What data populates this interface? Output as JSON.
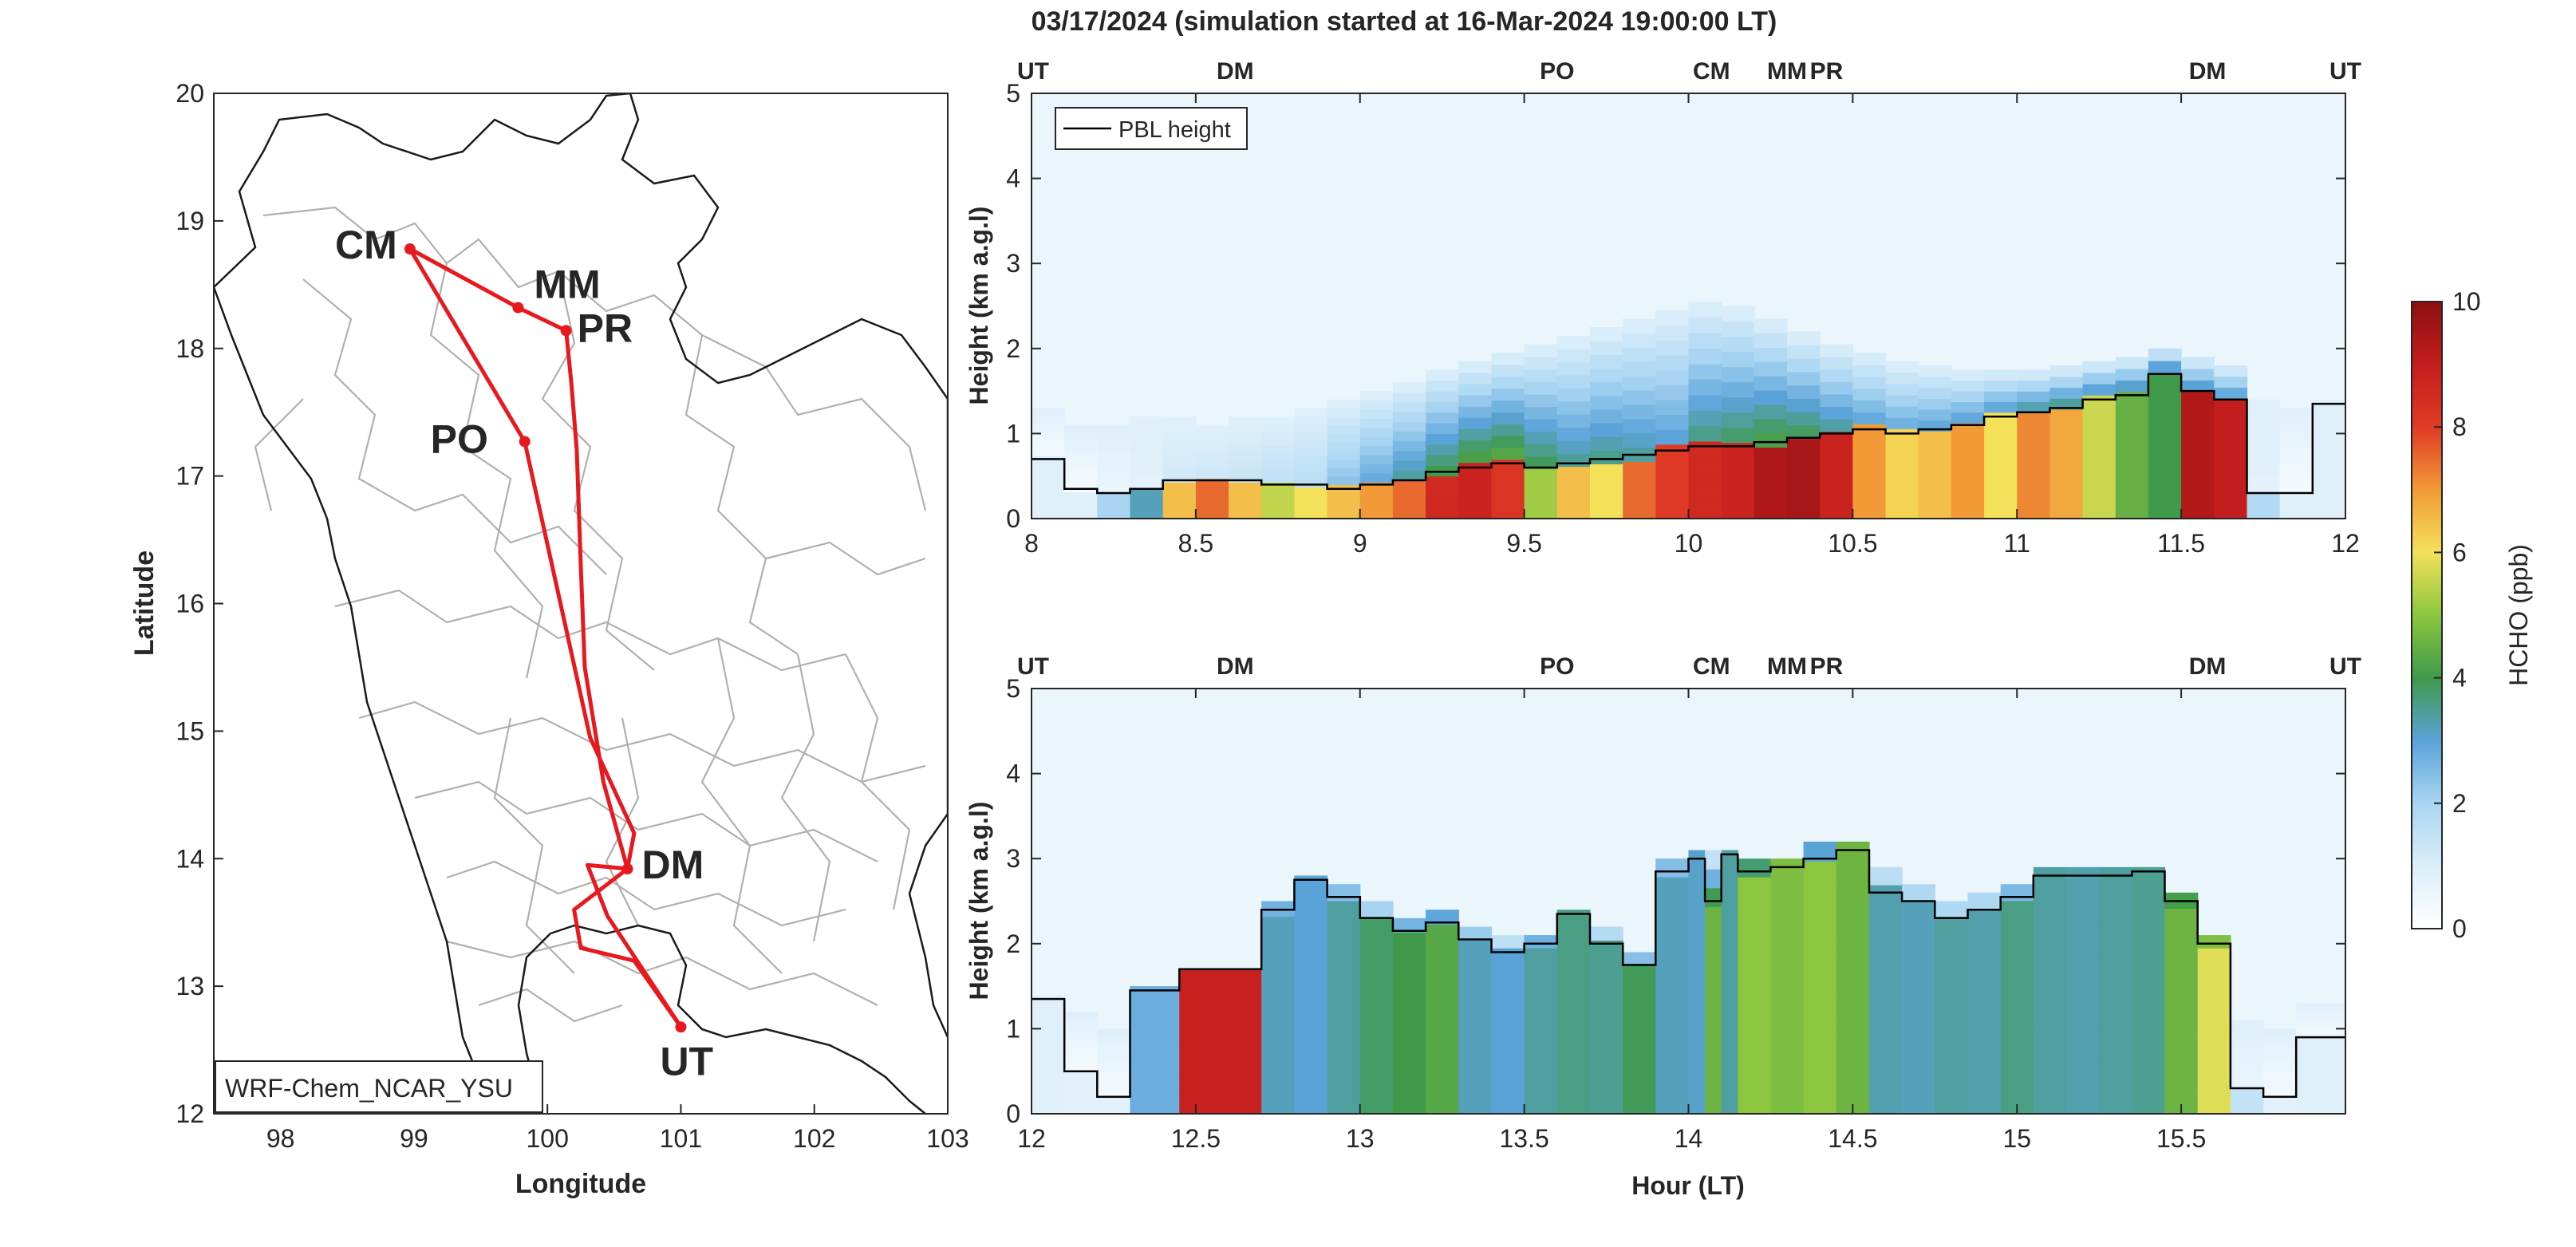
{
  "figure_title": "03/17/2024 (simulation started at 16-Mar-2024 19:00:00 LT)",
  "colors": {
    "route": "#e8191e",
    "UT": "#111111",
    "DM": "#4db7e8",
    "PO": "#77ac30",
    "CM": "#d95319",
    "MM": "#edb120",
    "PR": "#7e2f8e",
    "pbl": "#000000",
    "axis": "#262626",
    "grid": "#c8c8c8",
    "border": "#b0b0b0"
  },
  "chart_data": [
    {
      "type": "map",
      "xlabel": "Longitude",
      "ylabel": "Latitude",
      "xlim": [
        97.5,
        103
      ],
      "ylim": [
        12,
        20
      ],
      "xticks": [
        "98",
        "99",
        "100",
        "101",
        "102",
        "103"
      ],
      "yticks": [
        "12",
        "13",
        "14",
        "15",
        "16",
        "17",
        "18",
        "19",
        "20"
      ],
      "annotation": "WRF-Chem_NCAR_YSU",
      "stations": [
        {
          "code": "CM",
          "lon": 98.97,
          "lat": 18.78
        },
        {
          "code": "MM",
          "lon": 99.78,
          "lat": 18.32
        },
        {
          "code": "PR",
          "lon": 100.14,
          "lat": 18.14
        },
        {
          "code": "PO",
          "lon": 99.83,
          "lat": 17.27
        },
        {
          "code": "DM",
          "lon": 100.6,
          "lat": 13.92
        },
        {
          "code": "UT",
          "lon": 101.0,
          "lat": 12.68
        }
      ],
      "route": [
        [
          101.0,
          12.68
        ],
        [
          100.45,
          13.55
        ],
        [
          100.3,
          13.95
        ],
        [
          100.6,
          13.92
        ],
        [
          100.42,
          14.6
        ],
        [
          100.28,
          15.5
        ],
        [
          100.25,
          16.3
        ],
        [
          100.22,
          17.2
        ],
        [
          100.18,
          17.72
        ],
        [
          100.14,
          18.14
        ],
        [
          99.78,
          18.32
        ],
        [
          98.97,
          18.78
        ],
        [
          99.83,
          17.27
        ],
        [
          100.32,
          14.95
        ],
        [
          100.65,
          14.2
        ],
        [
          100.6,
          13.92
        ],
        [
          100.2,
          13.6
        ],
        [
          100.25,
          13.3
        ],
        [
          100.65,
          13.2
        ],
        [
          101.0,
          12.68
        ]
      ]
    },
    {
      "type": "heatmap",
      "xlabel": "",
      "ylabel": "Height (km a.g.l)",
      "xlim": [
        8,
        12
      ],
      "ylim": [
        0,
        5
      ],
      "xticks": [
        "8",
        "8.5",
        "9",
        "9.5",
        "10",
        "10.5",
        "11",
        "11.5",
        "12"
      ],
      "yticks": [
        "0",
        "1",
        "2",
        "3",
        "4",
        "5"
      ],
      "legend": "PBL height",
      "legend_position": "top-left",
      "top_labels": [
        {
          "code": "UT",
          "x": 8.0
        },
        {
          "code": "DM",
          "x": 8.62
        },
        {
          "code": "PO",
          "x": 9.6
        },
        {
          "code": "CM",
          "x": 10.07
        },
        {
          "code": "MM",
          "x": 10.3
        },
        {
          "code": "PR",
          "x": 10.42
        },
        {
          "code": "DM",
          "x": 11.58
        },
        {
          "code": "UT",
          "x": 11.98
        }
      ],
      "columns": [
        {
          "x0": 8.0,
          "x1": 8.1,
          "top": 1.3,
          "c": 0.9,
          "n": 0.3,
          "pbl": 0.7
        },
        {
          "x0": 8.1,
          "x1": 8.2,
          "top": 1.1,
          "c": 0.9,
          "n": 0.3,
          "pbl": 0.35
        },
        {
          "x0": 8.2,
          "x1": 8.3,
          "top": 1.1,
          "c": 2.0,
          "n": 0.6,
          "pbl": 0.3
        },
        {
          "x0": 8.3,
          "x1": 8.4,
          "top": 1.2,
          "c": 3.2,
          "n": 0.8,
          "pbl": 0.35
        },
        {
          "x0": 8.4,
          "x1": 8.5,
          "top": 1.2,
          "c": 6.5,
          "n": 1.2,
          "pbl": 0.45
        },
        {
          "x0": 8.5,
          "x1": 8.6,
          "top": 1.1,
          "c": 7.5,
          "n": 1.3,
          "pbl": 0.45
        },
        {
          "x0": 8.6,
          "x1": 8.7,
          "top": 1.2,
          "c": 6.5,
          "n": 1.4,
          "pbl": 0.45
        },
        {
          "x0": 8.7,
          "x1": 8.8,
          "top": 1.2,
          "c": 5.5,
          "n": 1.6,
          "pbl": 0.4
        },
        {
          "x0": 8.8,
          "x1": 8.9,
          "top": 1.3,
          "c": 6.0,
          "n": 1.7,
          "pbl": 0.4
        },
        {
          "x0": 8.9,
          "x1": 9.0,
          "top": 1.4,
          "c": 6.5,
          "n": 2.5,
          "pbl": 0.35
        },
        {
          "x0": 9.0,
          "x1": 9.1,
          "top": 1.5,
          "c": 7.0,
          "n": 3.0,
          "pbl": 0.4
        },
        {
          "x0": 9.1,
          "x1": 9.2,
          "top": 1.6,
          "c": 7.5,
          "n": 3.5,
          "pbl": 0.45
        },
        {
          "x0": 9.2,
          "x1": 9.3,
          "top": 1.75,
          "c": 8.6,
          "n": 4.0,
          "pbl": 0.55
        },
        {
          "x0": 9.3,
          "x1": 9.4,
          "top": 1.85,
          "c": 8.8,
          "n": 4.5,
          "pbl": 0.6
        },
        {
          "x0": 9.4,
          "x1": 9.5,
          "top": 1.95,
          "c": 8.2,
          "n": 4.6,
          "pbl": 0.65
        },
        {
          "x0": 9.5,
          "x1": 9.6,
          "top": 2.05,
          "c": 5.2,
          "n": 4.0,
          "pbl": 0.6
        },
        {
          "x0": 9.6,
          "x1": 9.7,
          "top": 2.15,
          "c": 6.5,
          "n": 3.5,
          "pbl": 0.65
        },
        {
          "x0": 9.7,
          "x1": 9.8,
          "top": 2.25,
          "c": 6.0,
          "n": 3.6,
          "pbl": 0.7
        },
        {
          "x0": 9.8,
          "x1": 9.9,
          "top": 2.35,
          "c": 7.5,
          "n": 3.4,
          "pbl": 0.75
        },
        {
          "x0": 9.9,
          "x1": 10.0,
          "top": 2.45,
          "c": 8.0,
          "n": 3.2,
          "pbl": 0.8
        },
        {
          "x0": 10.0,
          "x1": 10.1,
          "top": 2.55,
          "c": 8.6,
          "n": 3.8,
          "pbl": 0.85
        },
        {
          "x0": 10.1,
          "x1": 10.2,
          "top": 2.5,
          "c": 8.8,
          "n": 4.0,
          "pbl": 0.85
        },
        {
          "x0": 10.2,
          "x1": 10.3,
          "top": 2.35,
          "c": 9.4,
          "n": 4.2,
          "pbl": 0.9
        },
        {
          "x0": 10.3,
          "x1": 10.4,
          "top": 2.2,
          "c": 9.5,
          "n": 4.0,
          "pbl": 0.95
        },
        {
          "x0": 10.4,
          "x1": 10.5,
          "top": 2.05,
          "c": 8.8,
          "n": 3.6,
          "pbl": 1.0
        },
        {
          "x0": 10.5,
          "x1": 10.6,
          "top": 1.95,
          "c": 7.0,
          "n": 3.2,
          "pbl": 1.05
        },
        {
          "x0": 10.6,
          "x1": 10.7,
          "top": 1.85,
          "c": 6.2,
          "n": 3.0,
          "pbl": 1.0
        },
        {
          "x0": 10.7,
          "x1": 10.8,
          "top": 1.8,
          "c": 6.5,
          "n": 3.0,
          "pbl": 1.05
        },
        {
          "x0": 10.8,
          "x1": 10.9,
          "top": 1.75,
          "c": 7.0,
          "n": 3.2,
          "pbl": 1.1
        },
        {
          "x0": 10.9,
          "x1": 11.0,
          "top": 1.75,
          "c": 6.0,
          "n": 3.4,
          "pbl": 1.2
        },
        {
          "x0": 11.0,
          "x1": 11.1,
          "top": 1.75,
          "c": 7.2,
          "n": 3.6,
          "pbl": 1.25
        },
        {
          "x0": 11.1,
          "x1": 11.2,
          "top": 1.8,
          "c": 6.8,
          "n": 3.7,
          "pbl": 1.3
        },
        {
          "x0": 11.2,
          "x1": 11.3,
          "top": 1.85,
          "c": 5.6,
          "n": 3.7,
          "pbl": 1.4
        },
        {
          "x0": 11.3,
          "x1": 11.4,
          "top": 1.9,
          "c": 4.5,
          "n": 3.8,
          "pbl": 1.45
        },
        {
          "x0": 11.4,
          "x1": 11.5,
          "top": 2.0,
          "c": 4.0,
          "n": 3.8,
          "pbl": 1.7
        },
        {
          "x0": 11.5,
          "x1": 11.6,
          "top": 1.9,
          "c": 9.3,
          "n": 3.4,
          "pbl": 1.5
        },
        {
          "x0": 11.6,
          "x1": 11.7,
          "top": 1.8,
          "c": 9.0,
          "n": 3.3,
          "pbl": 1.4
        },
        {
          "x0": 11.7,
          "x1": 11.8,
          "top": 1.4,
          "c": 1.8,
          "n": 0.8,
          "pbl": 0.3
        },
        {
          "x0": 11.8,
          "x1": 11.9,
          "top": 1.3,
          "c": 0.9,
          "n": 0.3,
          "pbl": 0.3
        },
        {
          "x0": 11.9,
          "x1": 12.0,
          "top": 1.5,
          "c": 0.9,
          "n": 0.3,
          "pbl": 1.35
        }
      ]
    },
    {
      "type": "heatmap",
      "xlabel": "Hour (LT)",
      "ylabel": "Height (km a.g.l)",
      "xlim": [
        12,
        16
      ],
      "ylim": [
        0,
        5
      ],
      "xticks": [
        "12",
        "12.5",
        "13",
        "13.5",
        "14",
        "14.5",
        "15",
        "15.5"
      ],
      "yticks": [
        "0",
        "1",
        "2",
        "3",
        "4",
        "5"
      ],
      "top_labels": [
        {
          "code": "UT",
          "x": 12.0
        },
        {
          "code": "DM",
          "x": 12.62
        },
        {
          "code": "PO",
          "x": 13.6
        },
        {
          "code": "CM",
          "x": 14.07
        },
        {
          "code": "MM",
          "x": 14.3
        },
        {
          "code": "PR",
          "x": 14.42
        },
        {
          "code": "DM",
          "x": 15.58
        },
        {
          "code": "UT",
          "x": 15.98
        }
      ],
      "columns": [
        {
          "x0": 12.0,
          "x1": 12.1,
          "top": 1.5,
          "c": 0.9,
          "n": 0.3,
          "pbl": 1.35
        },
        {
          "x0": 12.1,
          "x1": 12.2,
          "top": 1.2,
          "c": 0.8,
          "n": 0.3,
          "pbl": 0.5
        },
        {
          "x0": 12.2,
          "x1": 12.3,
          "top": 1.0,
          "c": 0.8,
          "n": 0.3,
          "pbl": 0.2
        },
        {
          "x0": 12.3,
          "x1": 12.45,
          "top": 1.5,
          "c": 2.8,
          "n": 2.2,
          "pbl": 1.45
        },
        {
          "x0": 12.45,
          "x1": 12.7,
          "top": 1.7,
          "c": 8.9,
          "n": 8.0,
          "pbl": 1.7
        },
        {
          "x0": 12.7,
          "x1": 12.8,
          "top": 2.5,
          "c": 3.2,
          "n": 2.8,
          "pbl": 2.4
        },
        {
          "x0": 12.8,
          "x1": 12.9,
          "top": 2.8,
          "c": 3.0,
          "n": 2.7,
          "pbl": 2.75
        },
        {
          "x0": 12.9,
          "x1": 13.0,
          "top": 2.7,
          "c": 3.4,
          "n": 3.0,
          "pbl": 2.55
        },
        {
          "x0": 13.0,
          "x1": 13.1,
          "top": 2.5,
          "c": 3.8,
          "n": 3.4,
          "pbl": 2.3
        },
        {
          "x0": 13.1,
          "x1": 13.2,
          "top": 2.3,
          "c": 4.0,
          "n": 3.6,
          "pbl": 2.15
        },
        {
          "x0": 13.2,
          "x1": 13.3,
          "top": 2.4,
          "c": 4.3,
          "n": 3.9,
          "pbl": 2.25
        },
        {
          "x0": 13.3,
          "x1": 13.4,
          "top": 2.2,
          "c": 3.2,
          "n": 2.9,
          "pbl": 2.05
        },
        {
          "x0": 13.4,
          "x1": 13.5,
          "top": 2.1,
          "c": 3.0,
          "n": 2.7,
          "pbl": 1.9
        },
        {
          "x0": 13.5,
          "x1": 13.6,
          "top": 2.1,
          "c": 3.4,
          "n": 3.0,
          "pbl": 2.0
        },
        {
          "x0": 13.6,
          "x1": 13.7,
          "top": 2.4,
          "c": 3.6,
          "n": 3.2,
          "pbl": 2.35
        },
        {
          "x0": 13.7,
          "x1": 13.8,
          "top": 2.2,
          "c": 3.5,
          "n": 3.1,
          "pbl": 2.0
        },
        {
          "x0": 13.8,
          "x1": 13.9,
          "top": 1.9,
          "c": 3.9,
          "n": 3.5,
          "pbl": 1.75
        },
        {
          "x0": 13.9,
          "x1": 14.0,
          "top": 3.0,
          "c": 3.2,
          "n": 2.9,
          "pbl": 2.85
        },
        {
          "x0": 14.0,
          "x1": 14.05,
          "top": 3.1,
          "c": 3.1,
          "n": 2.8,
          "pbl": 3.0
        },
        {
          "x0": 14.05,
          "x1": 14.1,
          "top": 3.1,
          "c": 4.6,
          "n": 4.2,
          "pbl": 2.5
        },
        {
          "x0": 14.1,
          "x1": 14.15,
          "top": 3.1,
          "c": 3.4,
          "n": 3.1,
          "pbl": 3.05
        },
        {
          "x0": 14.15,
          "x1": 14.25,
          "top": 3.0,
          "c": 5.0,
          "n": 4.5,
          "pbl": 2.85
        },
        {
          "x0": 14.25,
          "x1": 14.35,
          "top": 3.0,
          "c": 4.8,
          "n": 4.3,
          "pbl": 2.9
        },
        {
          "x0": 14.35,
          "x1": 14.45,
          "top": 3.2,
          "c": 5.0,
          "n": 4.6,
          "pbl": 3.0
        },
        {
          "x0": 14.45,
          "x1": 14.55,
          "top": 3.2,
          "c": 4.6,
          "n": 4.1,
          "pbl": 3.1
        },
        {
          "x0": 14.55,
          "x1": 14.65,
          "top": 2.9,
          "c": 3.3,
          "n": 3.0,
          "pbl": 2.6
        },
        {
          "x0": 14.65,
          "x1": 14.75,
          "top": 2.7,
          "c": 3.2,
          "n": 2.9,
          "pbl": 2.5
        },
        {
          "x0": 14.75,
          "x1": 14.85,
          "top": 2.5,
          "c": 3.4,
          "n": 3.1,
          "pbl": 2.3
        },
        {
          "x0": 14.85,
          "x1": 14.95,
          "top": 2.6,
          "c": 3.3,
          "n": 3.0,
          "pbl": 2.4
        },
        {
          "x0": 14.95,
          "x1": 15.05,
          "top": 2.7,
          "c": 3.6,
          "n": 3.2,
          "pbl": 2.55
        },
        {
          "x0": 15.05,
          "x1": 15.15,
          "top": 2.9,
          "c": 3.4,
          "n": 3.1,
          "pbl": 2.8
        },
        {
          "x0": 15.15,
          "x1": 15.25,
          "top": 2.9,
          "c": 3.3,
          "n": 3.0,
          "pbl": 2.8
        },
        {
          "x0": 15.25,
          "x1": 15.35,
          "top": 2.9,
          "c": 3.4,
          "n": 3.1,
          "pbl": 2.8
        },
        {
          "x0": 15.35,
          "x1": 15.45,
          "top": 2.9,
          "c": 3.5,
          "n": 3.2,
          "pbl": 2.85
        },
        {
          "x0": 15.45,
          "x1": 15.55,
          "top": 2.6,
          "c": 4.6,
          "n": 4.2,
          "pbl": 2.5
        },
        {
          "x0": 15.55,
          "x1": 15.65,
          "top": 2.1,
          "c": 5.8,
          "n": 5.4,
          "pbl": 2.0
        },
        {
          "x0": 15.65,
          "x1": 15.75,
          "top": 1.1,
          "c": 1.5,
          "n": 0.6,
          "pbl": 0.3
        },
        {
          "x0": 15.75,
          "x1": 15.85,
          "top": 1.0,
          "c": 0.8,
          "n": 0.3,
          "pbl": 0.2
        },
        {
          "x0": 15.85,
          "x1": 16.0,
          "top": 1.3,
          "c": 0.9,
          "n": 0.3,
          "pbl": 0.9
        }
      ]
    },
    {
      "type": "colorbar",
      "label": "HCHO (ppb)",
      "range": [
        0,
        10
      ],
      "ticks": [
        "0",
        "2",
        "4",
        "6",
        "8",
        "10"
      ]
    }
  ]
}
